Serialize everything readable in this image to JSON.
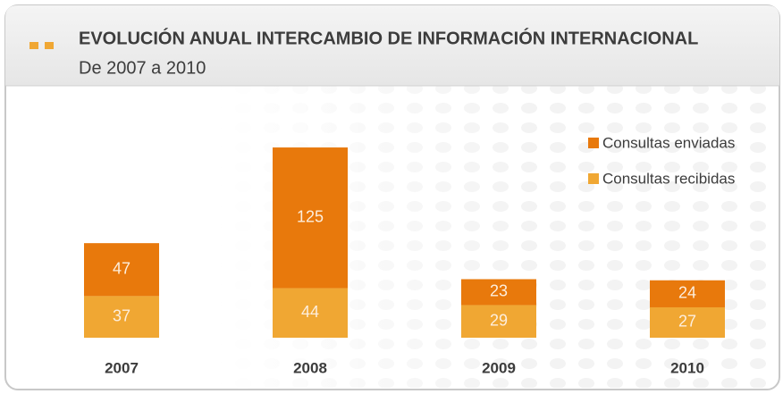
{
  "chart_data": {
    "type": "stacked_bar",
    "title": "EVOLUCIÓN ANUAL INTERCAMBIO DE INFORMACIÓN INTERNACIONAL",
    "subtitle": "De 2007 a 2010",
    "categories": [
      "2007",
      "2008",
      "2009",
      "2010"
    ],
    "series": [
      {
        "name": "Consultas enviadas",
        "color": "#e8790c",
        "values": [
          47,
          125,
          23,
          24
        ]
      },
      {
        "name": "Consultas recibidas",
        "color": "#f0a733",
        "values": [
          37,
          44,
          29,
          27
        ]
      }
    ],
    "legend": "upper right"
  }
}
